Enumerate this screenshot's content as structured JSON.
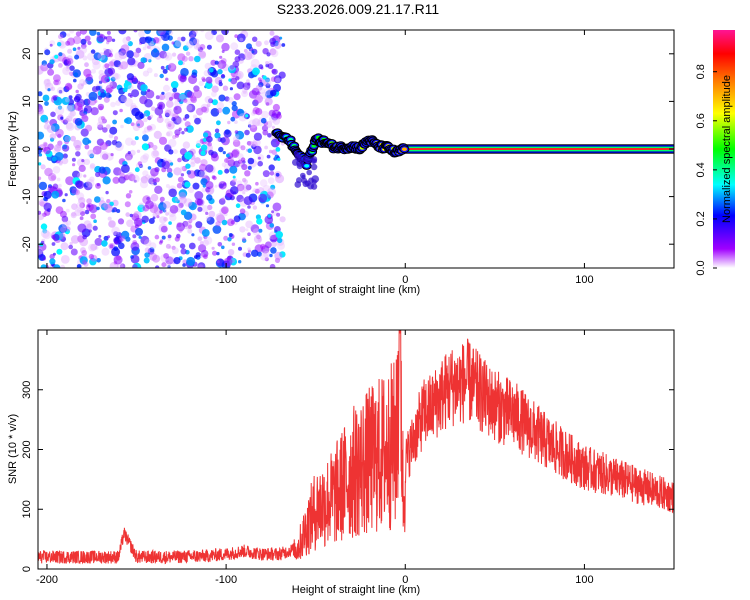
{
  "title": "S233.2026.009.21.17.R11",
  "chart_data": [
    {
      "type": "heatmap",
      "name": "spectrogram",
      "xlabel": "Height of straight line (km)",
      "ylabel": "Frequency (Hz)",
      "xlim": [
        -205,
        150
      ],
      "ylim": [
        -25,
        25
      ],
      "xticks": [
        -200,
        -100,
        0,
        100
      ],
      "yticks": [
        -20,
        -10,
        0,
        10,
        20
      ],
      "colorbar": {
        "label": "Normalized spectral amplitude",
        "range": [
          0,
          0.97
        ],
        "ticks": [
          0.0,
          0.2,
          0.4,
          0.6,
          0.8
        ],
        "tick_labels": [
          "0.0",
          "0.2",
          "0.4",
          "0.6",
          "0.8"
        ],
        "colormap": [
          "#ffffff",
          "#a000ff",
          "#0000ff",
          "#00ffff",
          "#00ff00",
          "#ffff00",
          "#ff8000",
          "#ff0000",
          "#ff1493"
        ]
      },
      "noise_region": {
        "x": [
          -205,
          -68
        ],
        "freq": [
          -25,
          25
        ],
        "amplitude_range": [
          0.0,
          0.35
        ]
      },
      "signal_track": {
        "x": [
          -72,
          -65,
          -60,
          -55,
          -50,
          -45,
          -40,
          -35,
          -30,
          -25,
          -20,
          -15,
          -10,
          -5,
          0,
          10,
          20,
          40,
          60,
          80,
          100,
          120,
          150
        ],
        "freq": [
          3,
          2,
          -1,
          -3,
          2,
          1.5,
          0.5,
          0.3,
          0.5,
          0.2,
          2,
          0.5,
          0.3,
          -0.8,
          0.2,
          0.1,
          0,
          0,
          0,
          0,
          0,
          0,
          0
        ],
        "amplitude": [
          0.3,
          0.4,
          0.45,
          0.35,
          0.5,
          0.5,
          0.55,
          0.6,
          0.55,
          0.6,
          0.65,
          0.65,
          0.65,
          0.6,
          0.75,
          0.8,
          0.85,
          0.85,
          0.85,
          0.85,
          0.85,
          0.85,
          0.85
        ]
      }
    },
    {
      "type": "line",
      "name": "snr",
      "xlabel": "Height of straight line (km)",
      "ylabel": "SNR (10 * v/v)",
      "xlim": [
        -205,
        150
      ],
      "ylim": [
        0,
        400
      ],
      "xticks": [
        -200,
        -100,
        0,
        100
      ],
      "yticks": [
        0,
        100,
        200,
        300
      ],
      "color": "#ee3333",
      "x": [
        -205,
        -190,
        -170,
        -160,
        -157,
        -150,
        -130,
        -110,
        -100,
        -90,
        -80,
        -70,
        -60,
        -55,
        -50,
        -45,
        -40,
        -35,
        -30,
        -25,
        -20,
        -15,
        -10,
        -5,
        -3,
        -1,
        0,
        5,
        10,
        15,
        20,
        25,
        30,
        35,
        40,
        45,
        50,
        55,
        60,
        70,
        80,
        90,
        100,
        110,
        120,
        130,
        140,
        150
      ],
      "y": [
        20,
        20,
        20,
        20,
        60,
        20,
        20,
        22,
        25,
        30,
        25,
        25,
        35,
        70,
        100,
        110,
        120,
        140,
        160,
        170,
        180,
        190,
        200,
        210,
        395,
        100,
        180,
        220,
        260,
        270,
        290,
        305,
        310,
        315,
        300,
        285,
        275,
        265,
        260,
        235,
        210,
        190,
        170,
        160,
        150,
        140,
        130,
        120
      ]
    }
  ]
}
